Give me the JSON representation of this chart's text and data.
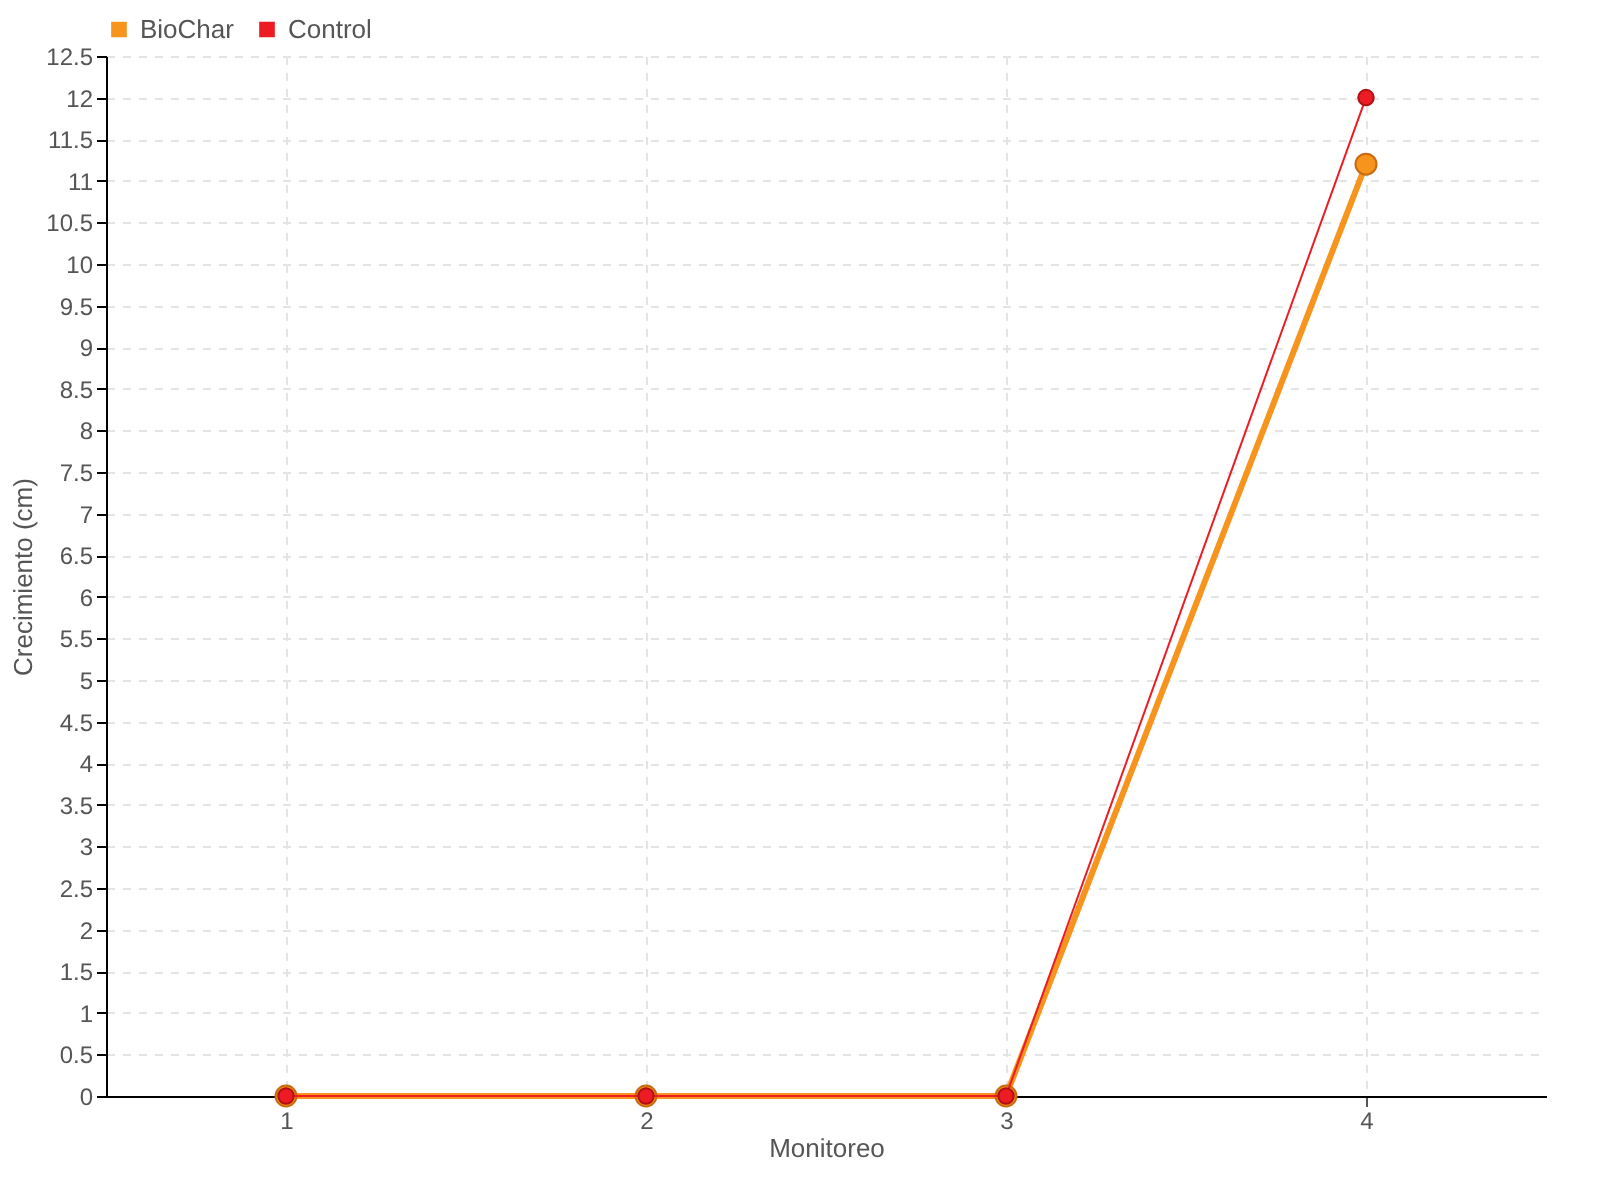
{
  "chart_data": {
    "type": "line",
    "xlabel": "Monitoreo",
    "ylabel": "Crecimiento (cm)",
    "x": [
      1,
      2,
      3,
      4
    ],
    "series": [
      {
        "name": "BioChar",
        "color": "#f7941d",
        "values": [
          0,
          0,
          0,
          11.2
        ]
      },
      {
        "name": "Control",
        "color": "#ed1c24",
        "values": [
          0,
          0,
          0,
          12
        ]
      }
    ],
    "xlim": [
      0.5,
      4.5
    ],
    "xticks": [
      1,
      2,
      3,
      4
    ],
    "ylim": [
      0,
      12.5
    ],
    "yticks": [
      0,
      0.5,
      1,
      1.5,
      2,
      2.5,
      3,
      3.5,
      4,
      4.5,
      5,
      5.5,
      6,
      6.5,
      7,
      7.5,
      8,
      8.5,
      9,
      9.5,
      10,
      10.5,
      11,
      11.5,
      12,
      12.5
    ],
    "grid": true,
    "legend": "top left",
    "marker": "circle"
  }
}
